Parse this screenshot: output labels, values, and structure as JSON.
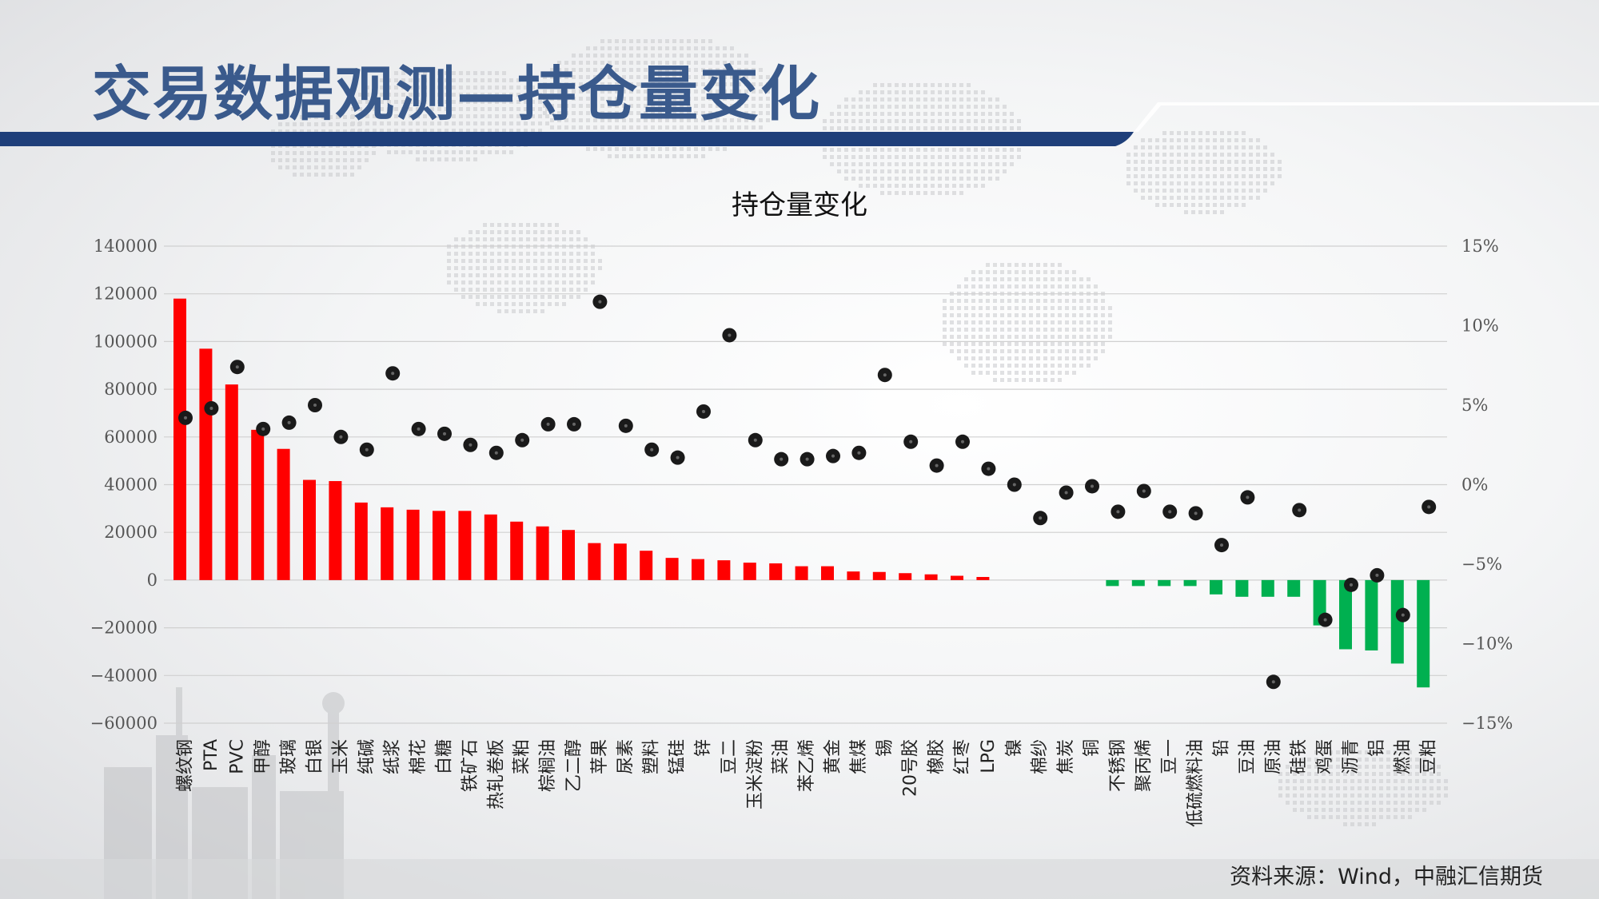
{
  "slide": {
    "title": "交易数据观测—持仓量变化",
    "source": "资料来源：Wind，中融汇信期货"
  },
  "colors": {
    "positive_bar": "#ff0000",
    "negative_bar": "#00b050",
    "dot": "#1a1a1a",
    "title_accent": "#1f3f7a",
    "title_text": "#3a5a8c"
  },
  "chart_data": {
    "type": "bar",
    "title": "持仓量变化",
    "categories": [
      "螺纹钢",
      "PTA",
      "PVC",
      "甲醇",
      "玻璃",
      "白银",
      "玉米",
      "纯碱",
      "纸浆",
      "棉花",
      "白糖",
      "铁矿石",
      "热轧卷板",
      "菜粕",
      "棕榈油",
      "乙二醇",
      "苹果",
      "尿素",
      "塑料",
      "锰硅",
      "锌",
      "豆二",
      "玉米淀粉",
      "菜油",
      "苯乙烯",
      "黄金",
      "焦煤",
      "锡",
      "20号胶",
      "橡胶",
      "红枣",
      "LPG",
      "镍",
      "棉纱",
      "焦炭",
      "铜",
      "不锈钢",
      "聚丙烯",
      "豆一",
      "低硫燃料油",
      "铅",
      "豆油",
      "原油",
      "硅铁",
      "鸡蛋",
      "沥青",
      "铝",
      "燃油",
      "豆粕"
    ],
    "series": [
      {
        "axis": "left",
        "type": "bar",
        "values": [
          118000,
          97000,
          82000,
          63000,
          55000,
          42000,
          41500,
          32500,
          30500,
          29500,
          29000,
          29000,
          27500,
          24500,
          22500,
          21000,
          15500,
          15300,
          12300,
          9300,
          8800,
          8300,
          7300,
          7000,
          5800,
          5800,
          3600,
          3400,
          2900,
          2400,
          1800,
          1300,
          0,
          0,
          0,
          0,
          -2500,
          -2500,
          -2500,
          -2500,
          -6000,
          -7000,
          -7000,
          -7000,
          -19000,
          -29000,
          -29500,
          -35000,
          -45000
        ]
      },
      {
        "axis": "right",
        "type": "scatter",
        "values": [
          4.2,
          4.8,
          7.4,
          3.5,
          3.9,
          5.0,
          3.0,
          2.2,
          7.0,
          3.5,
          3.2,
          2.5,
          2.0,
          2.8,
          3.8,
          3.8,
          11.5,
          3.7,
          2.2,
          1.7,
          4.6,
          9.4,
          2.8,
          1.6,
          1.6,
          1.8,
          2.0,
          6.9,
          2.7,
          1.2,
          2.7,
          1.0,
          0.0,
          -2.1,
          -0.5,
          -0.1,
          -1.7,
          -0.4,
          -1.7,
          -1.8,
          -3.8,
          -0.8,
          -12.4,
          -1.6,
          -8.5,
          -6.3,
          -5.7,
          -8.2,
          -1.4
        ]
      }
    ],
    "ylim_left": [
      -60000,
      140000
    ],
    "yticks_left": [
      "140000",
      "120000",
      "100000",
      "80000",
      "60000",
      "40000",
      "20000",
      "0",
      "−20000",
      "−40000",
      "−60000"
    ],
    "ylim_right": [
      -15,
      15
    ],
    "yticks_right": [
      "15%",
      "10%",
      "5%",
      "0%",
      "−5%",
      "−10%",
      "−15%"
    ],
    "grid": true,
    "legend": "none"
  }
}
